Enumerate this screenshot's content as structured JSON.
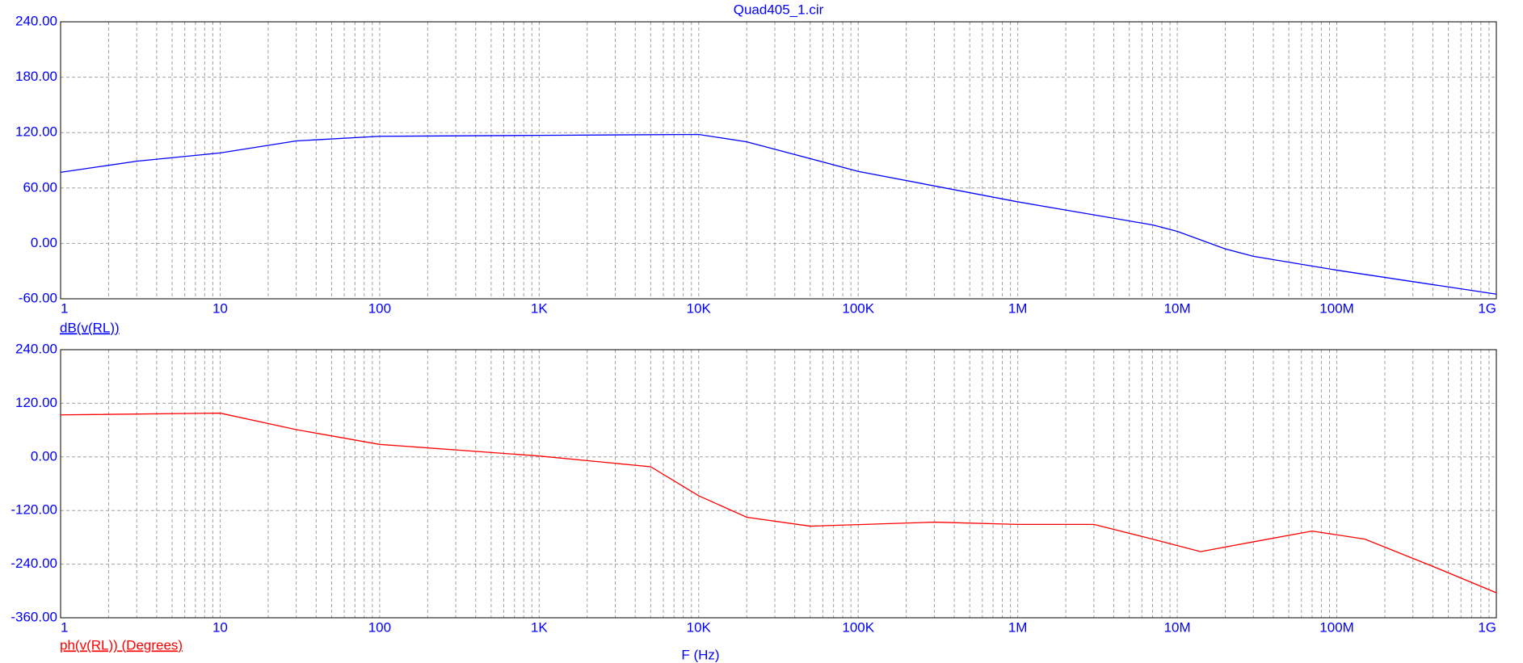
{
  "chart_data": [
    {
      "type": "line",
      "title": "Quad405_1.cir",
      "xscale": "log",
      "grid": true,
      "minor_grid": true,
      "x": [
        1,
        3,
        10,
        30,
        100,
        1000,
        10000,
        20000,
        100000,
        1000000,
        7000000,
        10000000,
        20000000,
        30000000,
        100000000,
        1000000000
      ],
      "series": [
        {
          "name": "dB(v(RL))",
          "color": "#0000ff",
          "values": [
            77,
            89,
            98,
            111,
            116,
            117,
            118,
            110,
            78,
            45,
            20,
            13,
            -6,
            -14,
            -29,
            -55
          ]
        }
      ],
      "xlim": [
        1,
        1000000000
      ],
      "xticks": [
        1,
        10,
        100,
        {
          "value": 1000,
          "label": "1K"
        },
        {
          "value": 10000,
          "label": "10K"
        },
        {
          "value": 100000,
          "label": "100K"
        },
        {
          "value": 1000000,
          "label": "1M"
        },
        {
          "value": 10000000,
          "label": "10M"
        },
        {
          "value": 100000000,
          "label": "100M"
        },
        {
          "value": 1000000000,
          "label": "1G"
        }
      ],
      "ylim": [
        -60,
        240
      ],
      "yticks": [
        {
          "value": -60,
          "label": "-60.00"
        },
        {
          "value": 0,
          "label": "0.00"
        },
        {
          "value": 60,
          "label": "60.00"
        },
        {
          "value": 120,
          "label": "120.00"
        },
        {
          "value": 180,
          "label": "180.00"
        },
        {
          "value": 240,
          "label": "240.00"
        }
      ]
    },
    {
      "type": "line",
      "xscale": "log",
      "grid": true,
      "minor_grid": true,
      "x_label": "F (Hz)",
      "x": [
        1,
        10,
        30,
        100,
        1000,
        5000,
        10000,
        20000,
        50000,
        300000,
        1000000,
        3000000,
        7000000,
        14000000,
        30000000,
        70000000,
        150000000,
        400000000,
        1000000000
      ],
      "series": [
        {
          "name": "ph(v(RL)) (Degrees)",
          "color": "#ff0000",
          "values": [
            94,
            98,
            61,
            28,
            2,
            -22,
            -87,
            -135,
            -155,
            -146,
            -151,
            -151,
            -184,
            -212,
            -190,
            -166,
            -184,
            -245,
            -304
          ]
        }
      ],
      "xlim": [
        1,
        1000000000
      ],
      "xticks": [
        1,
        10,
        100,
        {
          "value": 1000,
          "label": "1K"
        },
        {
          "value": 10000,
          "label": "10K"
        },
        {
          "value": 100000,
          "label": "100K"
        },
        {
          "value": 1000000,
          "label": "1M"
        },
        {
          "value": 10000000,
          "label": "10M"
        },
        {
          "value": 100000000,
          "label": "100M"
        },
        {
          "value": 1000000000,
          "label": "1G"
        }
      ],
      "ylim": [
        -360,
        240
      ],
      "yticks": [
        {
          "value": -360,
          "label": "-360.00"
        },
        {
          "value": -240,
          "label": "-240.00"
        },
        {
          "value": -120,
          "label": "-120.00"
        },
        {
          "value": 0,
          "label": "0.00"
        },
        {
          "value": 120,
          "label": "120.00"
        },
        {
          "value": 240,
          "label": "240.00"
        }
      ]
    }
  ]
}
